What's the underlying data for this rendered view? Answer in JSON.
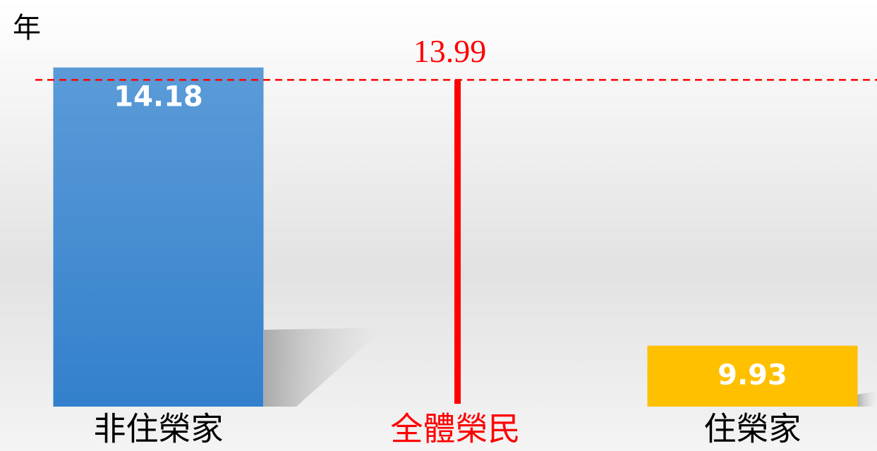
{
  "chart_data": {
    "type": "bar",
    "y_label": "年",
    "categories": [
      "非住榮家",
      "全體榮民",
      "住榮家"
    ],
    "values": [
      14.18,
      13.99,
      9.93
    ],
    "colors": [
      "#3a86d0",
      "#ff0000",
      "#ffc000"
    ],
    "mark_styles": [
      "bar",
      "reference-line",
      "bar"
    ],
    "ylim": [
      9,
      14.5
    ]
  }
}
